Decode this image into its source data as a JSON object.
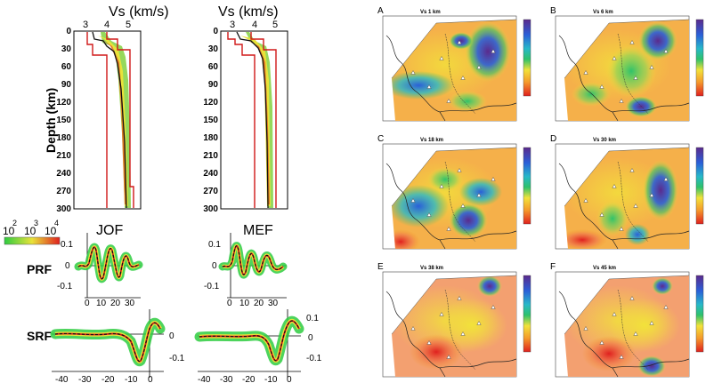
{
  "left": {
    "vs_title": "Vs (km/s)",
    "vs_ticks": [
      "3",
      "4",
      "5"
    ],
    "depth_label": "Depth (km)",
    "depth_ticks": [
      "0",
      "30",
      "60",
      "90",
      "120",
      "150",
      "180",
      "210",
      "240",
      "270",
      "300"
    ],
    "colorbar": {
      "labels": [
        "10",
        "10",
        "10"
      ],
      "exponents": [
        "2",
        "3",
        "4"
      ]
    },
    "stations": [
      "JOF",
      "MEF"
    ],
    "prf_label": "PRF",
    "prf_y_ticks": [
      "0.1",
      "0",
      "-0.1"
    ],
    "prf_x_ticks": [
      "0",
      "10",
      "20",
      "30"
    ],
    "srf_label": "SRF",
    "srf_y_ticks": [
      "0.1",
      "0",
      "-0.1"
    ],
    "srf_x_ticks": [
      "-40",
      "-30",
      "-20",
      "-10",
      "0"
    ]
  },
  "maps": [
    {
      "letter": "A",
      "title": "Vs 1 km"
    },
    {
      "letter": "B",
      "title": "Vs 6 km"
    },
    {
      "letter": "C",
      "title": "Vs 18 km"
    },
    {
      "letter": "D",
      "title": "Vs 30 km"
    },
    {
      "letter": "E",
      "title": "Vs 38 km"
    },
    {
      "letter": "F",
      "title": "Vs 45 km"
    }
  ],
  "colors": {
    "red": "#e0201e",
    "orange": "#f59a2b",
    "yellow": "#f2e23a",
    "green": "#2fc26a",
    "blue": "#2a5fd8",
    "purple": "#6a2c9a"
  }
}
